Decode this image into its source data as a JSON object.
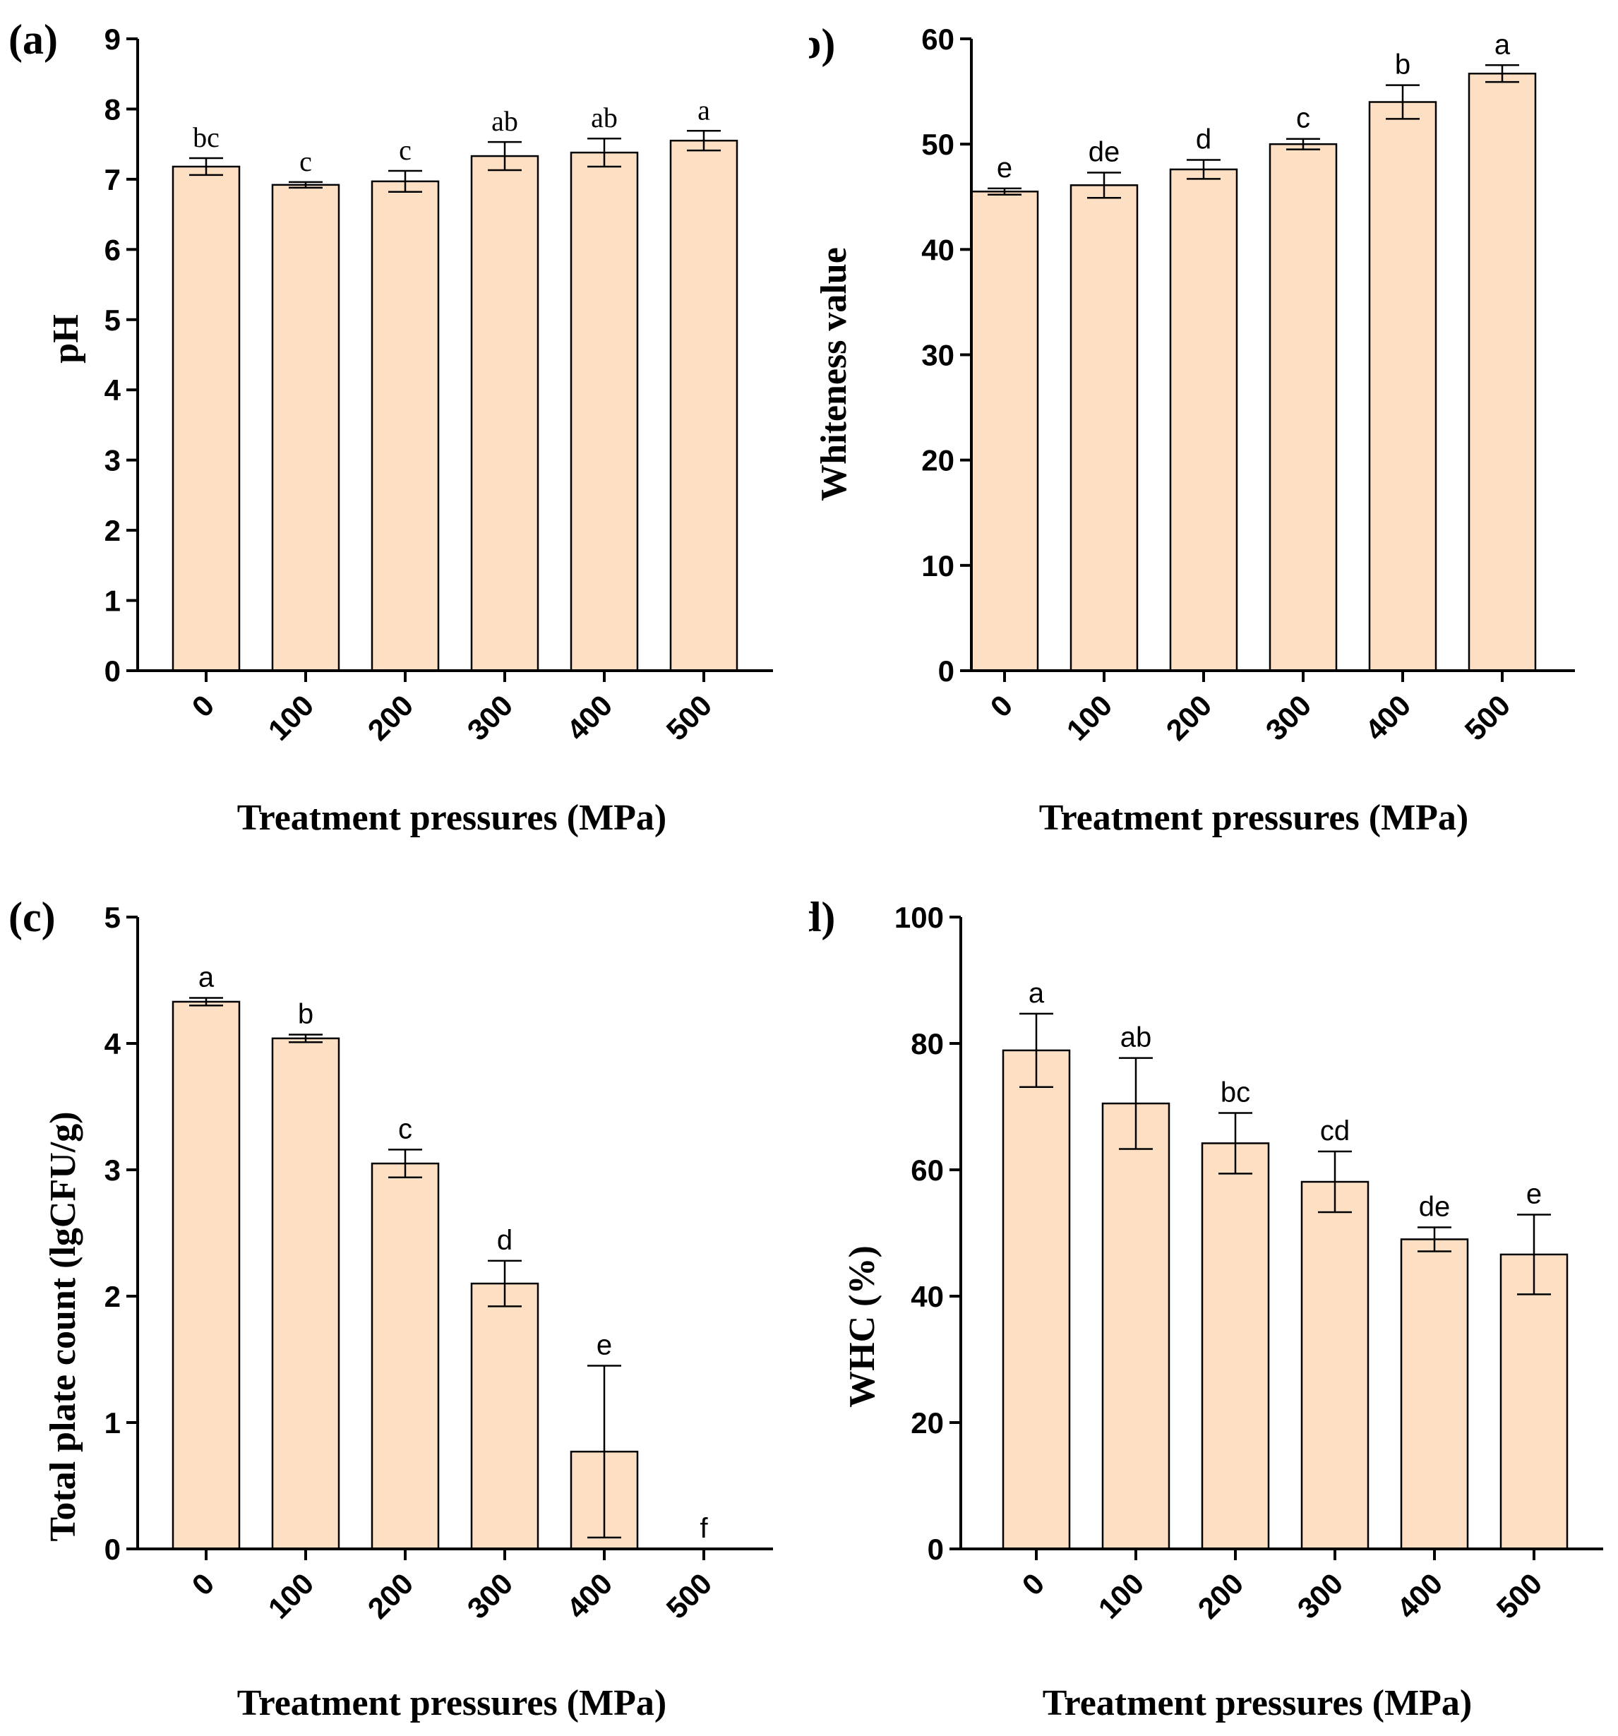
{
  "colors": {
    "bar_fill": "#fde0c4",
    "stroke": "#000000"
  },
  "x_categories": [
    "0",
    "100",
    "200",
    "300",
    "400",
    "500"
  ],
  "chart_data": [
    {
      "type": "bar",
      "panel": "(a)",
      "categories": [
        "0",
        "100",
        "200",
        "300",
        "400",
        "500"
      ],
      "values": [
        7.18,
        6.92,
        6.97,
        7.33,
        7.38,
        7.55
      ],
      "errors": [
        0.12,
        0.04,
        0.15,
        0.2,
        0.2,
        0.14
      ],
      "letters": [
        "bc",
        "c",
        "c",
        "ab",
        "ab",
        "a"
      ],
      "xlabel": "Treatment pressures (MPa)",
      "ylabel": "pH",
      "ylim": [
        0,
        9
      ],
      "yticks": [
        0,
        1,
        2,
        3,
        4,
        5,
        6,
        7,
        8,
        9
      ],
      "letter_font": "serif"
    },
    {
      "type": "bar",
      "panel": "(b)",
      "categories": [
        "0",
        "100",
        "200",
        "300",
        "400",
        "500"
      ],
      "values": [
        45.5,
        46.1,
        47.6,
        50.0,
        54.0,
        56.7
      ],
      "errors": [
        0.3,
        1.2,
        0.9,
        0.5,
        1.6,
        0.8
      ],
      "letters": [
        "e",
        "de",
        "d",
        "c",
        "b",
        "a"
      ],
      "xlabel": "Treatment pressures (MPa)",
      "ylabel": "Whiteness value",
      "ylim": [
        0,
        60
      ],
      "yticks": [
        0,
        10,
        20,
        30,
        40,
        50,
        60
      ],
      "letter_font": "sans"
    },
    {
      "type": "bar",
      "panel": "(c)",
      "categories": [
        "0",
        "100",
        "200",
        "300",
        "400",
        "500"
      ],
      "values": [
        4.33,
        4.04,
        3.05,
        2.1,
        0.77,
        0
      ],
      "errors": [
        0.03,
        0.03,
        0.11,
        0.18,
        0.68,
        0
      ],
      "letters": [
        "a",
        "b",
        "c",
        "d",
        "e",
        "f"
      ],
      "xlabel": "Treatment pressures (MPa)",
      "ylabel": "Total plate count (lgCFU/g)",
      "ylim": [
        0,
        5
      ],
      "yticks": [
        0,
        1,
        2,
        3,
        4,
        5
      ],
      "letter_font": "sans"
    },
    {
      "type": "bar",
      "panel": "(d)",
      "categories": [
        "0",
        "100",
        "200",
        "300",
        "400",
        "500"
      ],
      "values": [
        78.9,
        70.5,
        64.2,
        58.1,
        49.0,
        46.6
      ],
      "errors": [
        5.8,
        7.2,
        4.8,
        4.8,
        1.9,
        6.3
      ],
      "letters": [
        "a",
        "ab",
        "bc",
        "cd",
        "de",
        "e"
      ],
      "xlabel": "Treatment pressures (MPa)",
      "ylabel": "WHC (%)",
      "ylim": [
        0,
        100
      ],
      "yticks": [
        0,
        20,
        40,
        60,
        80,
        100
      ],
      "letter_font": "sans"
    }
  ]
}
